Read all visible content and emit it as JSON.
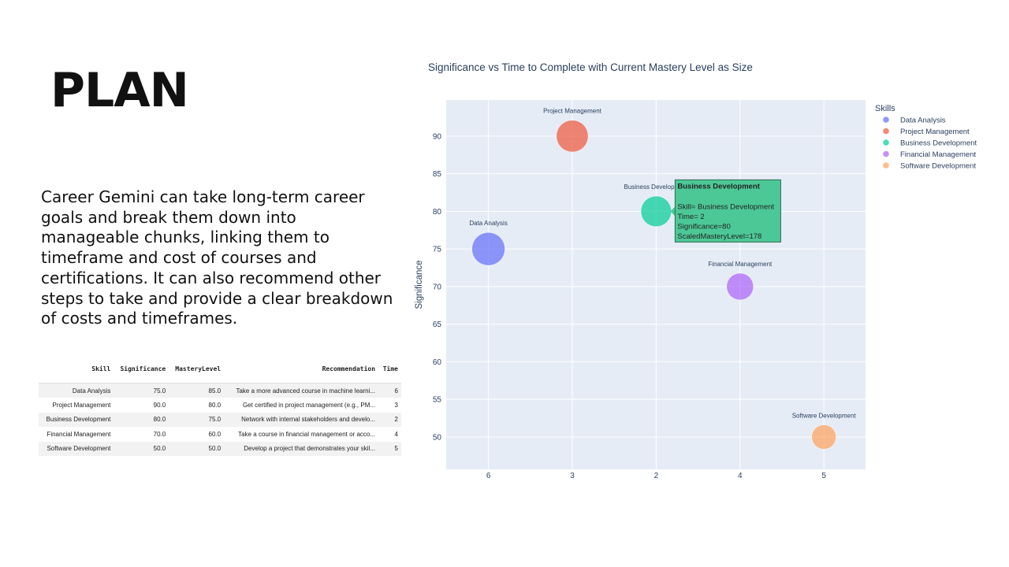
{
  "slide": {
    "title": "PLAN",
    "body": "Career Gemini can take long-term career goals and break them down into manageable chunks, linking them to timeframe and cost of courses and certifications. It can also recommend other steps to take and provide a clear breakdown of costs and timeframes."
  },
  "table": {
    "headers": [
      "Skill",
      "Significance",
      "MasteryLevel",
      "Recommendation",
      "Time"
    ],
    "rows": [
      [
        "Data Analysis",
        "75.0",
        "85.0",
        "Take a more advanced course in machine learni...",
        "6"
      ],
      [
        "Project Management",
        "90.0",
        "80.0",
        "Get certified in project management (e.g., PM...",
        "3"
      ],
      [
        "Business Development",
        "80.0",
        "75.0",
        "Network with internal stakeholders and develo...",
        "2"
      ],
      [
        "Financial Management",
        "70.0",
        "60.0",
        "Take a course in financial management or acco...",
        "4"
      ],
      [
        "Software Development",
        "50.0",
        "50.0",
        "Develop a project that demonstrates your skil...",
        "5"
      ]
    ]
  },
  "chart_data": {
    "type": "scatter",
    "title": "Significance vs Time to Complete with Current Mastery Level as Size",
    "xlabel": "",
    "ylabel": "Significance",
    "x_categories": [
      "6",
      "3",
      "2",
      "4",
      "5"
    ],
    "y_ticks": [
      50,
      55,
      60,
      65,
      70,
      75,
      80,
      85,
      90
    ],
    "ylim": [
      45.7,
      94.8
    ],
    "legend_title": "Skills",
    "legend_position": "right",
    "grid": true,
    "series": [
      {
        "name": "Data Analysis",
        "x": "6",
        "y": 75,
        "mastery": 85,
        "color": "#636efa"
      },
      {
        "name": "Project Management",
        "x": "3",
        "y": 90,
        "mastery": 80,
        "color": "#ef553b"
      },
      {
        "name": "Business Development",
        "x": "2",
        "y": 80,
        "mastery": 75,
        "color": "#00cc96"
      },
      {
        "name": "Financial Management",
        "x": "4",
        "y": 70,
        "mastery": 60,
        "color": "#ab63fa"
      },
      {
        "name": "Software Development",
        "x": "5",
        "y": 50,
        "mastery": 50,
        "color": "#ffa15a"
      }
    ],
    "tooltip": {
      "title": "Business Development",
      "lines": [
        "Skill= Business Development",
        "Time= 2",
        "Significance=80",
        "ScaledMasteryLevel=178"
      ],
      "color": "#4cc896"
    },
    "plot_bg": "#e5ecf6"
  }
}
